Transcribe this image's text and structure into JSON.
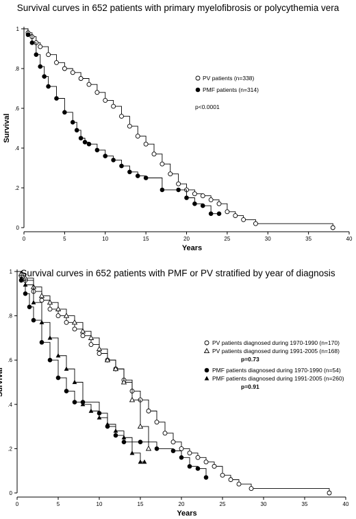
{
  "chart_data": [
    {
      "type": "line",
      "title": "Survival curves in 652 patients with primary myelofibrosis or polycythemia vera",
      "xlabel": "Years",
      "ylabel": "Survival",
      "xlim": [
        0,
        40
      ],
      "ylim": [
        0,
        1
      ],
      "xticks": [
        "0",
        "5",
        "10",
        "15",
        "20",
        "25",
        "30",
        "35",
        "40"
      ],
      "yticks": [
        "0",
        ".2",
        ".4",
        ".6",
        ".8",
        "1"
      ],
      "legend_position": "right",
      "annotation": "p<0.0001",
      "series": [
        {
          "name": "PV patients (n=338)",
          "marker": "open-circle",
          "x": [
            0,
            0.5,
            1,
            1.5,
            2,
            3,
            4,
            5,
            6,
            7,
            8,
            9,
            10,
            11,
            12,
            13,
            14,
            15,
            16,
            17,
            18,
            19,
            20,
            21,
            22,
            23,
            24,
            25,
            26,
            27,
            28.5,
            38
          ],
          "y": [
            1.0,
            0.98,
            0.96,
            0.93,
            0.91,
            0.87,
            0.83,
            0.8,
            0.78,
            0.75,
            0.72,
            0.68,
            0.64,
            0.61,
            0.56,
            0.51,
            0.46,
            0.42,
            0.37,
            0.32,
            0.27,
            0.22,
            0.19,
            0.17,
            0.16,
            0.14,
            0.12,
            0.08,
            0.06,
            0.04,
            0.02,
            0.0
          ]
        },
        {
          "name": "PMF patients (n=314)",
          "marker": "filled-circle",
          "x": [
            0,
            0.5,
            1,
            1.5,
            2,
            2.5,
            3,
            4,
            5,
            6,
            6.5,
            7,
            7.5,
            8,
            9,
            10,
            11,
            12,
            13,
            14,
            15,
            17,
            19,
            20,
            21,
            22,
            23,
            24
          ],
          "y": [
            1.0,
            0.97,
            0.93,
            0.87,
            0.81,
            0.76,
            0.71,
            0.65,
            0.58,
            0.53,
            0.49,
            0.45,
            0.43,
            0.42,
            0.39,
            0.36,
            0.34,
            0.31,
            0.28,
            0.26,
            0.25,
            0.19,
            0.19,
            0.15,
            0.12,
            0.11,
            0.07,
            0.07
          ]
        }
      ]
    },
    {
      "type": "line",
      "title": "Survival curves in 652 patients with PMF or PV stratified by year of diagnosis",
      "xlabel": "Years",
      "ylabel": "Survival",
      "xlim": [
        0,
        40
      ],
      "ylim": [
        0,
        1
      ],
      "xticks": [
        "0",
        "5",
        "10",
        "15",
        "20",
        "25",
        "30",
        "35",
        "40"
      ],
      "yticks": [
        "0",
        ".2",
        ".4",
        ".6",
        ".8",
        "1"
      ],
      "legend_position": "right",
      "legend_groups": [
        {
          "entries": [
            "PV patients diagnosed during 1970-1990 (n=170)",
            "PV patients diagnosed during 1991-2005 (n=168)"
          ],
          "p_value": "p=0.73"
        },
        {
          "entries": [
            "PMF patients diagnosed during 1970-1990 (n=54)",
            "PMF patients diagnosed during 1991-2005 (n=260)"
          ],
          "p_value": "p=0.91"
        }
      ],
      "series": [
        {
          "name": "PV patients diagnosed during 1970-1990 (n=170)",
          "marker": "open-circle",
          "x": [
            0,
            0.5,
            1,
            2,
            3,
            4,
            5,
            6,
            7,
            8,
            9,
            10,
            11,
            12,
            13,
            14,
            15,
            16,
            17,
            18,
            19,
            20,
            21,
            22,
            23,
            24,
            25,
            26,
            27,
            28.5,
            38
          ],
          "y": [
            1.0,
            0.98,
            0.96,
            0.91,
            0.87,
            0.83,
            0.8,
            0.77,
            0.74,
            0.71,
            0.67,
            0.63,
            0.6,
            0.56,
            0.51,
            0.46,
            0.42,
            0.37,
            0.32,
            0.27,
            0.23,
            0.2,
            0.18,
            0.16,
            0.14,
            0.12,
            0.08,
            0.06,
            0.04,
            0.02,
            0.0
          ]
        },
        {
          "name": "PV patients diagnosed during 1991-2005 (n=168)",
          "marker": "open-triangle",
          "x": [
            0,
            0.5,
            1,
            2,
            3,
            4,
            5,
            6,
            7,
            8,
            9,
            10,
            11,
            12,
            13,
            14,
            15,
            16
          ],
          "y": [
            1.0,
            0.99,
            0.97,
            0.93,
            0.89,
            0.86,
            0.83,
            0.8,
            0.77,
            0.73,
            0.7,
            0.65,
            0.6,
            0.56,
            0.5,
            0.42,
            0.3,
            0.2
          ]
        },
        {
          "name": "PMF patients diagnosed during 1970-1990 (n=54)",
          "marker": "filled-circle",
          "x": [
            0,
            0.5,
            1,
            1.5,
            2,
            3,
            4,
            5,
            6,
            7,
            8,
            10,
            11,
            12,
            13,
            15,
            17,
            19,
            20,
            21,
            22,
            23
          ],
          "y": [
            1.0,
            0.96,
            0.9,
            0.84,
            0.78,
            0.68,
            0.6,
            0.52,
            0.46,
            0.41,
            0.41,
            0.36,
            0.3,
            0.26,
            0.23,
            0.23,
            0.2,
            0.19,
            0.16,
            0.12,
            0.11,
            0.07
          ]
        },
        {
          "name": "PMF patients diagnosed during 1991-2005 (n=260)",
          "marker": "filled-triangle",
          "x": [
            0,
            0.5,
            1,
            2,
            3,
            4,
            5,
            6,
            7,
            8,
            9,
            10,
            11,
            12,
            13,
            14,
            15,
            15.5
          ],
          "y": [
            1.0,
            0.97,
            0.94,
            0.86,
            0.77,
            0.7,
            0.62,
            0.56,
            0.5,
            0.4,
            0.37,
            0.34,
            0.31,
            0.28,
            0.25,
            0.18,
            0.14,
            0.14
          ]
        }
      ]
    }
  ]
}
